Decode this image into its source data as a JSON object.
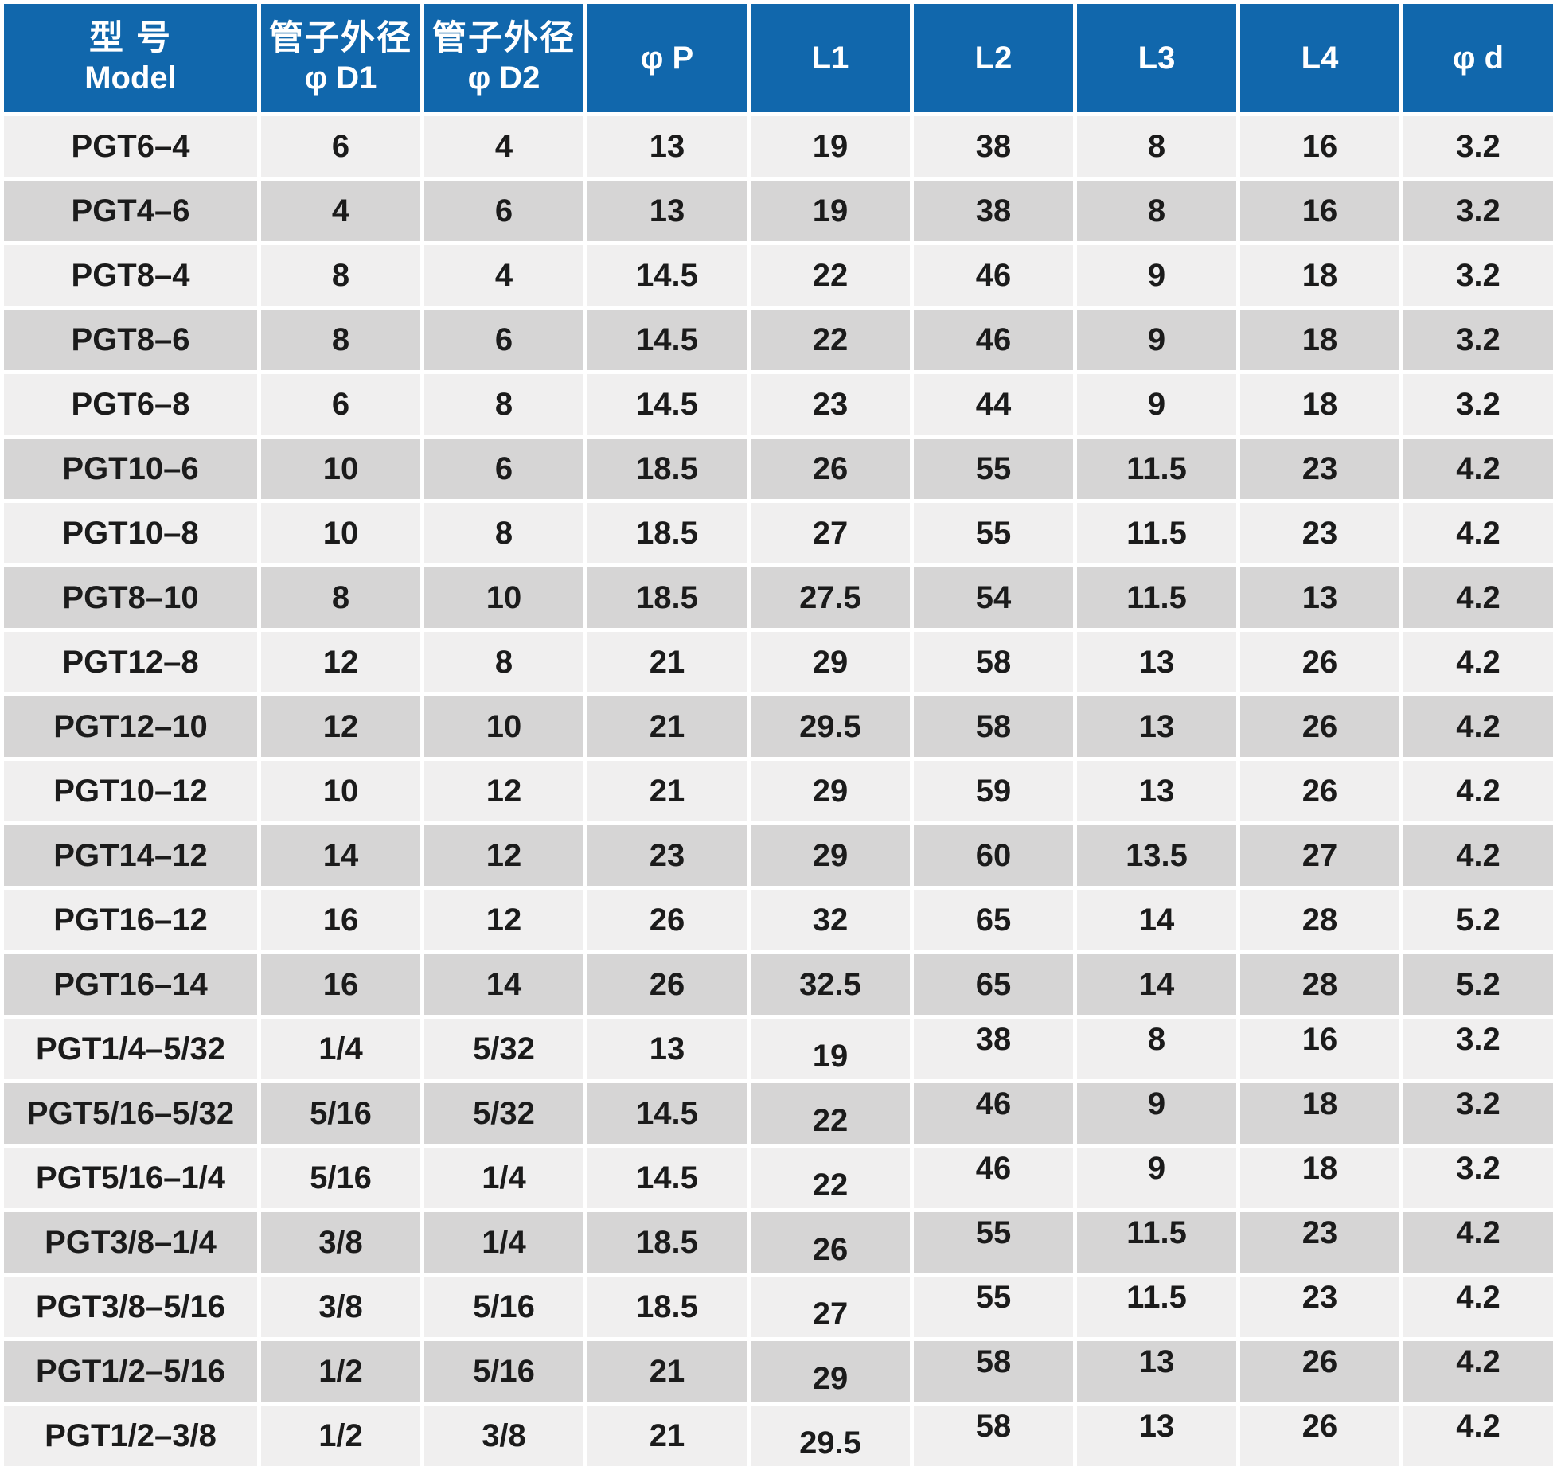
{
  "colors": {
    "header_bg": "#1167ac",
    "header_text": "#ffffff",
    "row_light": "#f0efef",
    "row_dark": "#d6d5d5",
    "cell_text": "#1b1b1b",
    "separator": "#ffffff"
  },
  "table": {
    "columns": [
      {
        "zh": "型 号",
        "en": "Model"
      },
      {
        "zh": "管子外径",
        "en": "φ D1"
      },
      {
        "zh": "管子外径",
        "en": "φ D2"
      },
      {
        "en": "φ P"
      },
      {
        "en": "L1"
      },
      {
        "en": "L2"
      },
      {
        "en": "L3"
      },
      {
        "en": "L4"
      },
      {
        "en": "φ d"
      }
    ],
    "rows": [
      [
        "PGT6–4",
        "6",
        "4",
        "13",
        "19",
        "38",
        "8",
        "16",
        "3.2"
      ],
      [
        "PGT4–6",
        "4",
        "6",
        "13",
        "19",
        "38",
        "8",
        "16",
        "3.2"
      ],
      [
        "PGT8–4",
        "8",
        "4",
        "14.5",
        "22",
        "46",
        "9",
        "18",
        "3.2"
      ],
      [
        "PGT8–6",
        "8",
        "6",
        "14.5",
        "22",
        "46",
        "9",
        "18",
        "3.2"
      ],
      [
        "PGT6–8",
        "6",
        "8",
        "14.5",
        "23",
        "44",
        "9",
        "18",
        "3.2"
      ],
      [
        "PGT10–6",
        "10",
        "6",
        "18.5",
        "26",
        "55",
        "11.5",
        "23",
        "4.2"
      ],
      [
        "PGT10–8",
        "10",
        "8",
        "18.5",
        "27",
        "55",
        "11.5",
        "23",
        "4.2"
      ],
      [
        "PGT8–10",
        "8",
        "10",
        "18.5",
        "27.5",
        "54",
        "11.5",
        "13",
        "4.2"
      ],
      [
        "PGT12–8",
        "12",
        "8",
        "21",
        "29",
        "58",
        "13",
        "26",
        "4.2"
      ],
      [
        "PGT12–10",
        "12",
        "10",
        "21",
        "29.5",
        "58",
        "13",
        "26",
        "4.2"
      ],
      [
        "PGT10–12",
        "10",
        "12",
        "21",
        "29",
        "59",
        "13",
        "26",
        "4.2"
      ],
      [
        "PGT14–12",
        "14",
        "12",
        "23",
        "29",
        "60",
        "13.5",
        "27",
        "4.2"
      ],
      [
        "PGT16–12",
        "16",
        "12",
        "26",
        "32",
        "65",
        "14",
        "28",
        "5.2"
      ],
      [
        "PGT16–14",
        "16",
        "14",
        "26",
        "32.5",
        "65",
        "14",
        "28",
        "5.2"
      ],
      [
        "PGT1/4–5/32",
        "1/4",
        "5/32",
        "13",
        "19",
        "38",
        "8",
        "16",
        "3.2"
      ],
      [
        "PGT5/16–5/32",
        "5/16",
        "5/32",
        "14.5",
        "22",
        "46",
        "9",
        "18",
        "3.2"
      ],
      [
        "PGT5/16–1/4",
        "5/16",
        "1/4",
        "14.5",
        "22",
        "46",
        "9",
        "18",
        "3.2"
      ],
      [
        "PGT3/8–1/4",
        "3/8",
        "1/4",
        "18.5",
        "26",
        "55",
        "11.5",
        "23",
        "4.2"
      ],
      [
        "PGT3/8–5/16",
        "3/8",
        "5/16",
        "18.5",
        "27",
        "55",
        "11.5",
        "23",
        "4.2"
      ],
      [
        "PGT1/2–5/16",
        "1/2",
        "5/16",
        "21",
        "29",
        "58",
        "13",
        "26",
        "4.2"
      ],
      [
        "PGT1/2–3/8",
        "1/2",
        "3/8",
        "21",
        "29.5",
        "58",
        "13",
        "26",
        "4.2"
      ]
    ]
  }
}
